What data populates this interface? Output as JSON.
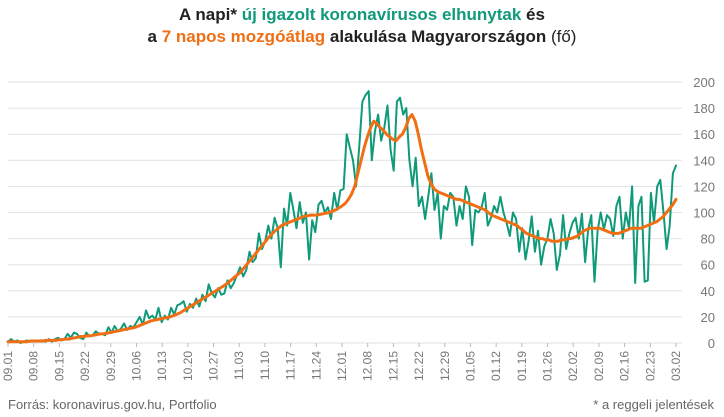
{
  "title": {
    "line1_a": "A napi* ",
    "line1_green": "új igazolt koronavírusos elhunytak",
    "line1_b": " és",
    "line2_a": "a ",
    "line2_orange": "7 napos mozgóátlag",
    "line2_b": " alakulása Magyarországon",
    "line2_paren": " (fő)"
  },
  "footer": {
    "source": "Forrás: koronavirus.gov.hu, Portfolio",
    "note": "* a reggeli jelentések"
  },
  "colors": {
    "daily": "#0f9a7a",
    "average": "#f06e14",
    "grid": "#e2e2e2",
    "axis_text": "#777777"
  },
  "chart_data": {
    "type": "line",
    "x_tick_labels": [
      "09.01",
      "09.08",
      "09.15",
      "09.22",
      "09.29",
      "10.06",
      "10.13",
      "10.20",
      "10.27",
      "11.03",
      "11.10",
      "11.17",
      "11.24",
      "12.01",
      "12.08",
      "12.15",
      "12.22",
      "12.29",
      "01.05",
      "01.12",
      "01.19",
      "01.26",
      "02.02",
      "02.09",
      "02.16",
      "02.23",
      "03.02"
    ],
    "ylim": [
      0,
      200
    ],
    "y_ticks": [
      0,
      20,
      40,
      60,
      80,
      100,
      120,
      140,
      160,
      180,
      200
    ],
    "y_axis_side": "right",
    "grid": true,
    "series": [
      {
        "name": "új igazolt koronavírusos elhunytak",
        "values": [
          1,
          3,
          1,
          2,
          0,
          1,
          2,
          1,
          2,
          1,
          2,
          2,
          1,
          3,
          1,
          3,
          4,
          2,
          3,
          7,
          4,
          8,
          7,
          4,
          3,
          8,
          5,
          6,
          9,
          7,
          7,
          6,
          12,
          8,
          13,
          9,
          11,
          15,
          10,
          13,
          12,
          16,
          20,
          14,
          25,
          19,
          21,
          18,
          27,
          16,
          21,
          18,
          27,
          22,
          29,
          30,
          32,
          24,
          30,
          27,
          34,
          28,
          37,
          32,
          45,
          38,
          35,
          42,
          37,
          38,
          48,
          42,
          46,
          52,
          58,
          51,
          56,
          70,
          62,
          65,
          84,
          72,
          78,
          90,
          80,
          96,
          88,
          58,
          103,
          90,
          115,
          102,
          88,
          108,
          92,
          100,
          64,
          94,
          85,
          106,
          109,
          100,
          104,
          95,
          115,
          102,
          117,
          118,
          160,
          150,
          140,
          120,
          150,
          185,
          190,
          193,
          140,
          162,
          175,
          155,
          165,
          182,
          148,
          132,
          185,
          188,
          175,
          180,
          140,
          120,
          142,
          105,
          112,
          95,
          112,
          130,
          102,
          115,
          80,
          105,
          102,
          115,
          112,
          90,
          105,
          95,
          120,
          112,
          75,
          102,
          100,
          104,
          115,
          90,
          96,
          105,
          100,
          112,
          100,
          92,
          82,
          100,
          95,
          70,
          88,
          64,
          78,
          97,
          70,
          86,
          60,
          74,
          80,
          95,
          84,
          56,
          68,
          98,
          72,
          84,
          92,
          96,
          80,
          99,
          62,
          87,
          98,
          47,
          86,
          100,
          87,
          98,
          95,
          82,
          105,
          112,
          80,
          100,
          88,
          120,
          46,
          105,
          112,
          47,
          48,
          115,
          92,
          120,
          125,
          100,
          72,
          90,
          130,
          136
        ]
      },
      {
        "name": "7 napos mozgóátlag",
        "values": [
          1,
          1,
          1,
          1,
          1,
          1,
          1,
          1.5,
          1.5,
          1.5,
          1.5,
          1.5,
          2,
          2,
          2,
          2,
          2.5,
          2.5,
          3,
          3,
          3.5,
          4,
          4.5,
          5,
          5,
          5.5,
          5.5,
          6,
          6.5,
          7,
          7,
          7.5,
          8,
          8.5,
          9,
          9.5,
          10,
          10.5,
          11,
          11.5,
          12,
          13,
          14,
          15,
          16,
          17,
          17.5,
          18,
          18.5,
          19,
          19.5,
          20,
          21,
          22,
          23,
          24.5,
          26,
          27.5,
          29,
          30.5,
          32,
          33.5,
          35,
          36.5,
          38,
          39.5,
          41,
          42.5,
          44,
          46,
          48,
          50,
          52,
          54,
          57,
          60,
          63,
          66,
          69,
          72,
          75,
          78,
          81,
          83.5,
          86,
          88,
          90,
          91,
          92,
          93,
          94,
          95,
          96,
          97,
          97.5,
          98,
          98,
          98,
          98.5,
          99,
          99.5,
          100,
          101,
          102,
          103.5,
          105,
          107,
          110,
          114,
          120,
          130,
          140,
          150,
          158,
          165,
          170,
          168,
          165,
          163,
          160,
          158,
          156,
          155,
          158,
          160,
          165,
          172,
          175,
          170,
          160,
          148,
          138,
          128,
          122,
          118,
          116,
          115,
          114,
          113,
          112,
          111,
          110,
          110,
          109,
          108,
          107,
          106,
          105,
          104,
          103,
          102,
          100,
          98,
          97,
          96,
          95,
          94,
          93,
          92,
          91,
          90,
          88,
          86,
          84,
          83,
          82,
          81,
          80,
          80,
          79,
          79,
          78,
          78,
          78,
          79,
          79,
          80,
          80,
          81,
          82,
          84,
          86,
          87,
          88,
          88,
          88,
          88,
          87,
          86,
          85,
          84,
          84,
          84,
          85,
          86,
          87,
          88,
          88,
          88,
          88,
          89,
          90,
          91,
          92,
          93,
          95,
          97,
          100,
          103,
          106,
          110
        ]
      }
    ]
  }
}
